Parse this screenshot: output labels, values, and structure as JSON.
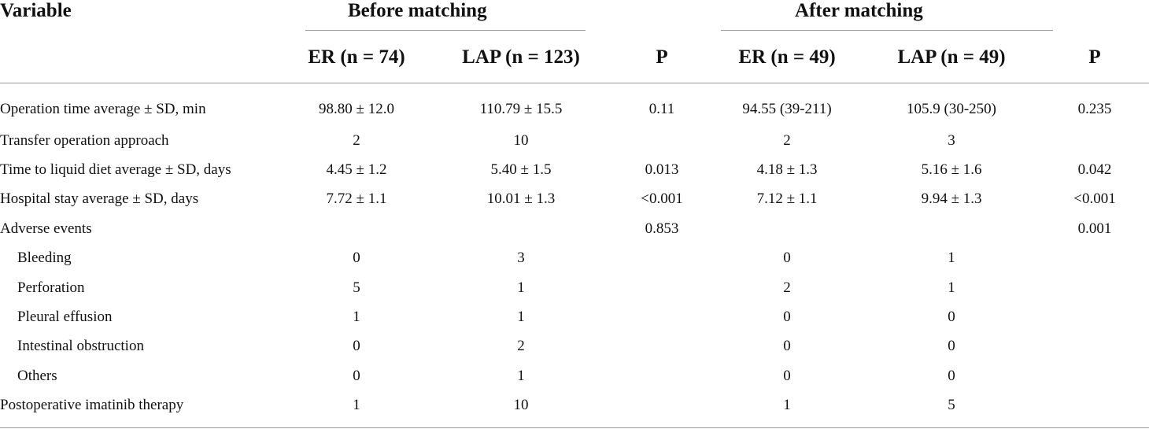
{
  "table": {
    "variable_header": "Variable",
    "groups": [
      {
        "label": "Before matching"
      },
      {
        "label": "After matching"
      }
    ],
    "columns": [
      "ER (n = 74)",
      "LAP (n = 123)",
      "P",
      "ER (n = 49)",
      "LAP (n = 49)",
      "P"
    ],
    "rows": [
      {
        "label": "Operation time average ± SD, min",
        "indent": false,
        "cells": [
          "98.80 ± 12.0",
          "110.79 ± 15.5",
          "0.11",
          "94.55 (39-211)",
          "105.9 (30-250)",
          "0.235"
        ]
      },
      {
        "label": "Transfer operation approach",
        "indent": false,
        "cells": [
          "2",
          "10",
          "",
          "2",
          "3",
          ""
        ]
      },
      {
        "label": "Time to liquid diet average ± SD, days",
        "indent": false,
        "cells": [
          "4.45 ± 1.2",
          "5.40 ± 1.5",
          "0.013",
          "4.18 ± 1.3",
          "5.16 ± 1.6",
          "0.042"
        ]
      },
      {
        "label": "Hospital stay average ± SD, days",
        "indent": false,
        "cells": [
          "7.72 ± 1.1",
          "10.01 ± 1.3",
          "<0.001",
          "7.12 ± 1.1",
          "9.94 ± 1.3",
          "<0.001"
        ]
      },
      {
        "label": "Adverse events",
        "indent": false,
        "cells": [
          "",
          "",
          "0.853",
          "",
          "",
          "0.001"
        ]
      },
      {
        "label": "Bleeding",
        "indent": true,
        "cells": [
          "0",
          "3",
          "",
          "0",
          "1",
          ""
        ]
      },
      {
        "label": "Perforation",
        "indent": true,
        "cells": [
          "5",
          "1",
          "",
          "2",
          "1",
          ""
        ]
      },
      {
        "label": "Pleural effusion",
        "indent": true,
        "cells": [
          "1",
          "1",
          "",
          "0",
          "0",
          ""
        ]
      },
      {
        "label": "Intestinal obstruction",
        "indent": true,
        "cells": [
          "0",
          "2",
          "",
          "0",
          "0",
          ""
        ]
      },
      {
        "label": "Others",
        "indent": true,
        "cells": [
          "0",
          "1",
          "",
          "0",
          "0",
          ""
        ]
      },
      {
        "label": "Postoperative imatinib therapy",
        "indent": false,
        "cells": [
          "1",
          "10",
          "",
          "1",
          "5",
          ""
        ]
      }
    ]
  }
}
